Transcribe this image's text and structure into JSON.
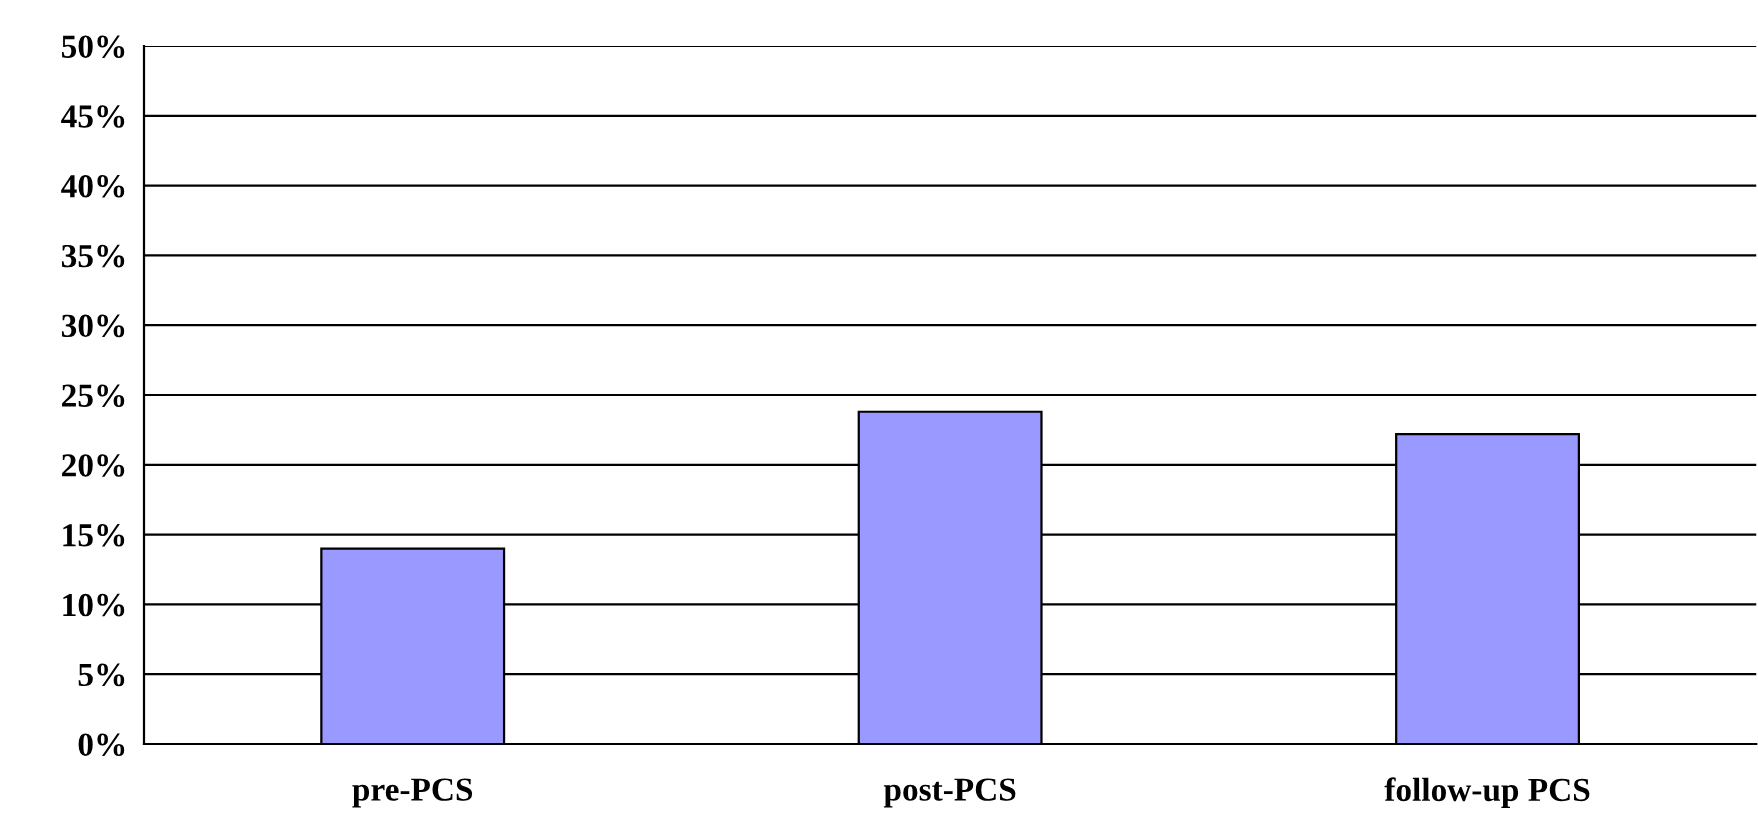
{
  "chart_data": {
    "type": "bar",
    "categories": [
      "pre-PCS",
      "post-PCS",
      "follow-up PCS"
    ],
    "values": [
      14.0,
      23.8,
      22.2
    ],
    "color": "#9999ff",
    "ylim": [
      0,
      50
    ],
    "yticks": [
      {
        "value": 0,
        "label": "0%"
      },
      {
        "value": 5,
        "label": "5%"
      },
      {
        "value": 10,
        "label": "10%"
      },
      {
        "value": 15,
        "label": "15%"
      },
      {
        "value": 20,
        "label": "20%"
      },
      {
        "value": 25,
        "label": "25%"
      },
      {
        "value": 30,
        "label": "30%"
      },
      {
        "value": 35,
        "label": "35%"
      },
      {
        "value": 40,
        "label": "40%"
      },
      {
        "value": 45,
        "label": "45%"
      },
      {
        "value": 50,
        "label": "50%"
      }
    ],
    "grid": "y",
    "legend": false
  }
}
